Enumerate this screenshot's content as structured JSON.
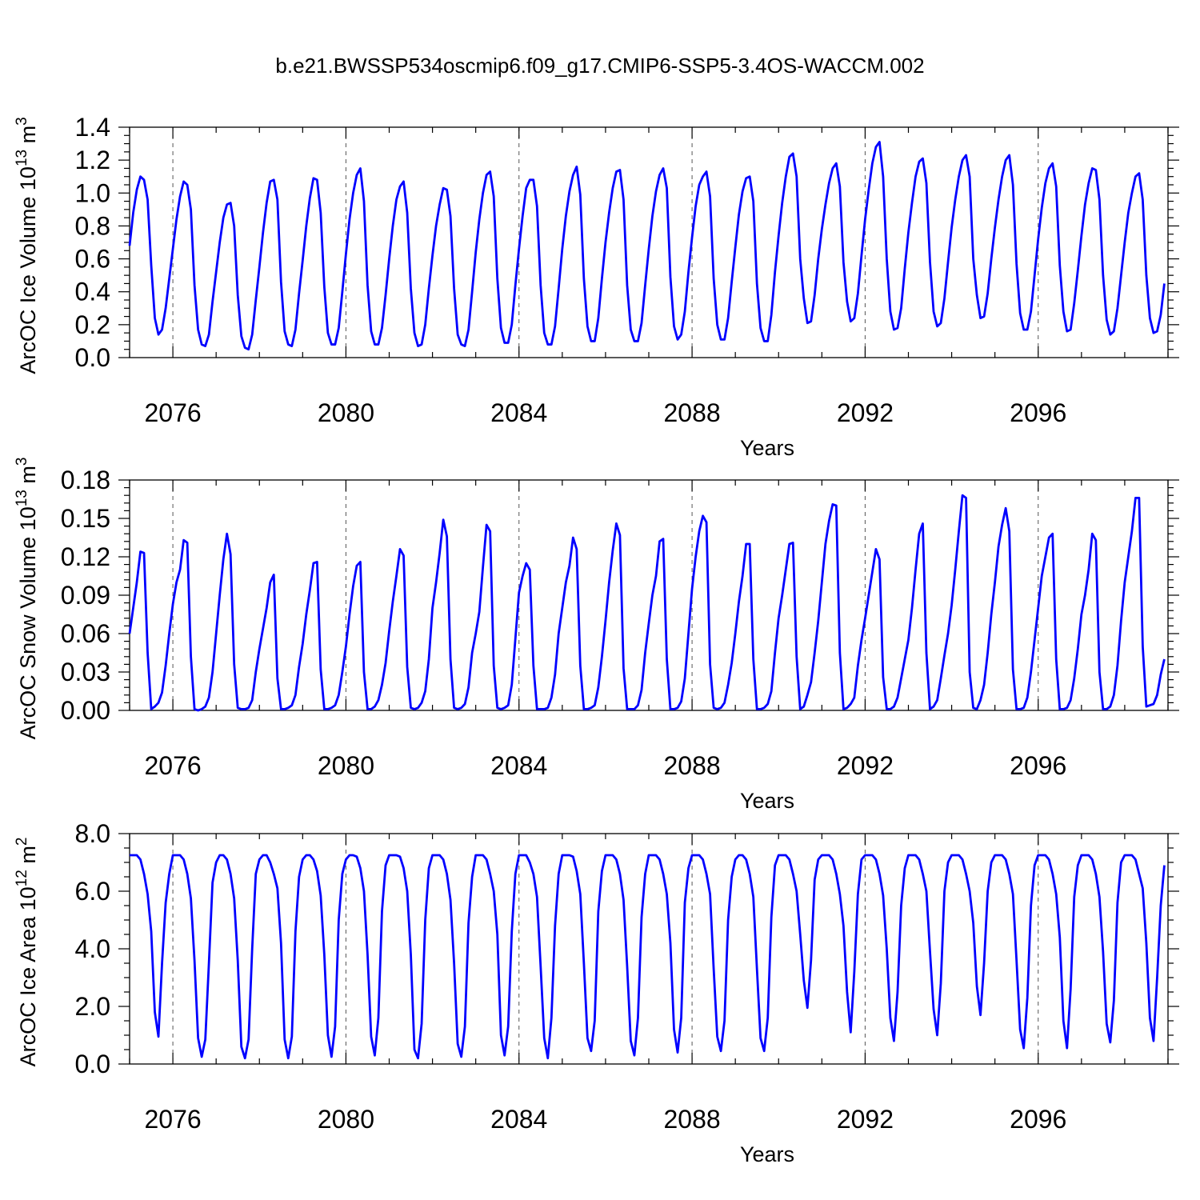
{
  "title": "b.e21.BWSSP534oscmip6.f09_g17.CMIP6-SSP5-3.4OS-WACCM.002",
  "line_color": "#0000ff",
  "chart_data": [
    {
      "type": "line",
      "ylabel": "ArcOC Ice Volume 10",
      "ylabel_exp": "13",
      "ylabel_unit": "m",
      "ylabel_unit_exp": "3",
      "xlabel": "Years",
      "xlim": [
        2075,
        2099
      ],
      "ylim": [
        0,
        1.4
      ],
      "ytick_labels": [
        "0.0",
        "0.2",
        "0.4",
        "0.6",
        "0.8",
        "1.0",
        "1.2",
        "1.4"
      ],
      "xtick_labels": [
        "2076",
        "2080",
        "2084",
        "2088",
        "2092",
        "2096"
      ],
      "grid": "dashed vertical at major x ticks",
      "series": [
        {
          "x_start": 2075.0,
          "x_step": 0.08333,
          "values": [
            0.68,
            0.88,
            1.02,
            1.1,
            1.08,
            0.96,
            0.56,
            0.24,
            0.14,
            0.17,
            0.3,
            0.48,
            0.66,
            0.84,
            0.98,
            1.07,
            1.05,
            0.9,
            0.44,
            0.17,
            0.08,
            0.07,
            0.14,
            0.34,
            0.52,
            0.7,
            0.85,
            0.93,
            0.94,
            0.8,
            0.38,
            0.13,
            0.06,
            0.05,
            0.14,
            0.35,
            0.55,
            0.76,
            0.94,
            1.07,
            1.08,
            0.96,
            0.46,
            0.16,
            0.08,
            0.07,
            0.17,
            0.39,
            0.59,
            0.8,
            0.97,
            1.09,
            1.08,
            0.88,
            0.43,
            0.15,
            0.08,
            0.08,
            0.18,
            0.4,
            0.63,
            0.84,
            1.0,
            1.11,
            1.15,
            0.95,
            0.44,
            0.16,
            0.08,
            0.08,
            0.18,
            0.38,
            0.6,
            0.8,
            0.96,
            1.04,
            1.07,
            0.88,
            0.42,
            0.15,
            0.07,
            0.08,
            0.2,
            0.42,
            0.62,
            0.8,
            0.93,
            1.03,
            1.02,
            0.86,
            0.42,
            0.14,
            0.08,
            0.07,
            0.17,
            0.4,
            0.64,
            0.84,
            1.0,
            1.11,
            1.13,
            0.98,
            0.48,
            0.18,
            0.09,
            0.09,
            0.2,
            0.44,
            0.66,
            0.86,
            1.03,
            1.08,
            1.08,
            0.92,
            0.44,
            0.15,
            0.08,
            0.08,
            0.19,
            0.42,
            0.66,
            0.86,
            1.01,
            1.11,
            1.16,
            0.99,
            0.48,
            0.19,
            0.1,
            0.1,
            0.24,
            0.48,
            0.7,
            0.88,
            1.03,
            1.13,
            1.14,
            0.96,
            0.44,
            0.17,
            0.1,
            0.1,
            0.21,
            0.44,
            0.66,
            0.86,
            1.01,
            1.11,
            1.15,
            1.03,
            0.49,
            0.19,
            0.11,
            0.14,
            0.28,
            0.52,
            0.73,
            0.92,
            1.05,
            1.1,
            1.13,
            0.98,
            0.48,
            0.2,
            0.11,
            0.11,
            0.24,
            0.46,
            0.67,
            0.87,
            1.01,
            1.09,
            1.1,
            0.95,
            0.45,
            0.18,
            0.1,
            0.1,
            0.26,
            0.52,
            0.74,
            0.94,
            1.1,
            1.22,
            1.24,
            1.1,
            0.6,
            0.36,
            0.21,
            0.22,
            0.38,
            0.6,
            0.78,
            0.93,
            1.06,
            1.15,
            1.18,
            1.04,
            0.58,
            0.34,
            0.22,
            0.24,
            0.39,
            0.62,
            0.84,
            1.02,
            1.18,
            1.28,
            1.31,
            1.1,
            0.6,
            0.28,
            0.17,
            0.18,
            0.3,
            0.54,
            0.76,
            0.94,
            1.1,
            1.19,
            1.21,
            1.06,
            0.58,
            0.28,
            0.19,
            0.21,
            0.36,
            0.58,
            0.79,
            0.96,
            1.1,
            1.2,
            1.23,
            1.1,
            0.6,
            0.38,
            0.24,
            0.25,
            0.39,
            0.6,
            0.79,
            0.96,
            1.1,
            1.2,
            1.23,
            1.05,
            0.57,
            0.27,
            0.17,
            0.17,
            0.28,
            0.5,
            0.72,
            0.91,
            1.06,
            1.15,
            1.18,
            1.04,
            0.56,
            0.28,
            0.16,
            0.17,
            0.33,
            0.53,
            0.74,
            0.93,
            1.06,
            1.15,
            1.14,
            0.96,
            0.5,
            0.23,
            0.14,
            0.16,
            0.3,
            0.5,
            0.7,
            0.88,
            1.0,
            1.1,
            1.12,
            0.96,
            0.5,
            0.24,
            0.15,
            0.16,
            0.26,
            0.45
          ]
        }
      ]
    },
    {
      "type": "line",
      "ylabel": "ArcOC Snow Volume 10",
      "ylabel_exp": "13",
      "ylabel_unit": "m",
      "ylabel_unit_exp": "3",
      "xlabel": "Years",
      "xlim": [
        2075,
        2099
      ],
      "ylim": [
        0,
        0.18
      ],
      "ytick_labels": [
        "0.00",
        "0.03",
        "0.06",
        "0.09",
        "0.12",
        "0.15",
        "0.18"
      ],
      "xtick_labels": [
        "2076",
        "2080",
        "2084",
        "2088",
        "2092",
        "2096"
      ],
      "grid": "dashed vertical at major x ticks",
      "series": [
        {
          "x_start": 2075.0,
          "x_step": 0.08333,
          "values": [
            0.06,
            0.08,
            0.1,
            0.124,
            0.123,
            0.045,
            0.001,
            0.003,
            0.006,
            0.014,
            0.035,
            0.06,
            0.083,
            0.1,
            0.11,
            0.133,
            0.131,
            0.042,
            0.001,
            0.0,
            0.001,
            0.003,
            0.01,
            0.03,
            0.06,
            0.09,
            0.118,
            0.138,
            0.122,
            0.036,
            0.002,
            0.001,
            0.001,
            0.002,
            0.008,
            0.03,
            0.048,
            0.064,
            0.08,
            0.1,
            0.106,
            0.025,
            0.001,
            0.001,
            0.002,
            0.004,
            0.012,
            0.034,
            0.052,
            0.075,
            0.094,
            0.115,
            0.116,
            0.032,
            0.001,
            0.001,
            0.002,
            0.004,
            0.012,
            0.03,
            0.05,
            0.075,
            0.097,
            0.113,
            0.116,
            0.03,
            0.001,
            0.001,
            0.003,
            0.008,
            0.02,
            0.037,
            0.062,
            0.085,
            0.105,
            0.126,
            0.121,
            0.034,
            0.002,
            0.001,
            0.002,
            0.006,
            0.015,
            0.04,
            0.08,
            0.1,
            0.123,
            0.149,
            0.136,
            0.04,
            0.002,
            0.001,
            0.002,
            0.005,
            0.018,
            0.045,
            0.06,
            0.077,
            0.112,
            0.145,
            0.14,
            0.035,
            0.002,
            0.001,
            0.002,
            0.004,
            0.02,
            0.056,
            0.092,
            0.105,
            0.115,
            0.11,
            0.035,
            0.001,
            0.001,
            0.001,
            0.002,
            0.01,
            0.028,
            0.06,
            0.08,
            0.1,
            0.113,
            0.135,
            0.126,
            0.035,
            0.001,
            0.001,
            0.002,
            0.004,
            0.018,
            0.042,
            0.07,
            0.1,
            0.125,
            0.146,
            0.137,
            0.033,
            0.001,
            0.001,
            0.001,
            0.004,
            0.016,
            0.045,
            0.068,
            0.09,
            0.105,
            0.132,
            0.134,
            0.04,
            0.001,
            0.001,
            0.002,
            0.007,
            0.025,
            0.06,
            0.095,
            0.12,
            0.14,
            0.152,
            0.147,
            0.036,
            0.002,
            0.001,
            0.002,
            0.006,
            0.02,
            0.037,
            0.06,
            0.085,
            0.105,
            0.13,
            0.13,
            0.04,
            0.001,
            0.001,
            0.002,
            0.005,
            0.015,
            0.045,
            0.072,
            0.09,
            0.11,
            0.13,
            0.131,
            0.042,
            0.001,
            0.003,
            0.012,
            0.022,
            0.045,
            0.07,
            0.1,
            0.13,
            0.148,
            0.161,
            0.16,
            0.045,
            0.001,
            0.002,
            0.005,
            0.01,
            0.035,
            0.055,
            0.072,
            0.09,
            0.108,
            0.126,
            0.118,
            0.026,
            0.001,
            0.001,
            0.003,
            0.01,
            0.025,
            0.04,
            0.055,
            0.08,
            0.11,
            0.138,
            0.146,
            0.045,
            0.001,
            0.003,
            0.008,
            0.025,
            0.043,
            0.06,
            0.082,
            0.11,
            0.14,
            0.168,
            0.166,
            0.03,
            0.002,
            0.001,
            0.008,
            0.02,
            0.045,
            0.075,
            0.1,
            0.128,
            0.145,
            0.158,
            0.14,
            0.032,
            0.001,
            0.001,
            0.002,
            0.01,
            0.03,
            0.055,
            0.08,
            0.105,
            0.12,
            0.135,
            0.138,
            0.04,
            0.001,
            0.001,
            0.002,
            0.008,
            0.025,
            0.048,
            0.075,
            0.09,
            0.11,
            0.138,
            0.133,
            0.03,
            0.001,
            0.001,
            0.003,
            0.012,
            0.035,
            0.07,
            0.1,
            0.12,
            0.14,
            0.166,
            0.166,
            0.05,
            0.003,
            0.004,
            0.005,
            0.012,
            0.028,
            0.04
          ]
        }
      ]
    },
    {
      "type": "line",
      "ylabel": "ArcOC Ice Area 10",
      "ylabel_exp": "12",
      "ylabel_unit": "m",
      "ylabel_unit_exp": "2",
      "xlabel": "Years",
      "xlim": [
        2075,
        2099
      ],
      "ylim": [
        0,
        8
      ],
      "ytick_labels": [
        "0.0",
        "2.0",
        "4.0",
        "6.0",
        "8.0"
      ],
      "xtick_labels": [
        "2076",
        "2080",
        "2084",
        "2088",
        "2092",
        "2096"
      ],
      "grid": "dashed vertical at major x ticks",
      "series": [
        {
          "x_start": 2075.0,
          "x_step": 0.08333,
          "values": [
            7.25,
            7.25,
            7.25,
            7.1,
            6.6,
            5.9,
            4.6,
            1.8,
            0.95,
            3.5,
            5.6,
            6.6,
            7.25,
            7.25,
            7.25,
            7.1,
            6.6,
            5.75,
            3.6,
            0.9,
            0.25,
            0.85,
            3.5,
            6.3,
            7.0,
            7.25,
            7.25,
            7.1,
            6.6,
            5.75,
            3.6,
            0.6,
            0.2,
            0.85,
            4.0,
            6.6,
            7.1,
            7.25,
            7.25,
            7.0,
            6.6,
            6.1,
            4.2,
            0.85,
            0.2,
            0.95,
            4.6,
            6.5,
            7.1,
            7.25,
            7.25,
            7.1,
            6.7,
            5.85,
            3.8,
            1.0,
            0.25,
            1.3,
            5.0,
            6.6,
            7.1,
            7.25,
            7.25,
            7.2,
            6.8,
            6.0,
            3.8,
            0.95,
            0.3,
            1.6,
            5.3,
            6.9,
            7.25,
            7.25,
            7.25,
            7.2,
            6.8,
            6.0,
            3.8,
            0.5,
            0.2,
            1.4,
            5.0,
            6.8,
            7.25,
            7.25,
            7.25,
            7.1,
            6.6,
            5.7,
            3.5,
            0.7,
            0.25,
            1.3,
            4.9,
            6.5,
            7.25,
            7.25,
            7.25,
            7.1,
            6.6,
            6.0,
            4.5,
            1.0,
            0.3,
            1.3,
            4.6,
            6.6,
            7.25,
            7.25,
            7.25,
            7.0,
            6.6,
            5.8,
            3.4,
            0.9,
            0.2,
            1.6,
            4.8,
            6.6,
            7.25,
            7.25,
            7.25,
            7.2,
            6.7,
            5.9,
            3.5,
            0.9,
            0.45,
            1.5,
            5.3,
            6.7,
            7.25,
            7.25,
            7.25,
            7.1,
            6.6,
            5.7,
            3.4,
            0.8,
            0.3,
            1.6,
            5.1,
            6.6,
            7.25,
            7.25,
            7.25,
            7.1,
            6.6,
            5.9,
            4.2,
            1.2,
            0.4,
            1.6,
            5.6,
            6.8,
            7.25,
            7.25,
            7.25,
            7.1,
            6.6,
            5.9,
            3.3,
            0.95,
            0.45,
            1.5,
            5.0,
            6.5,
            7.1,
            7.25,
            7.25,
            7.1,
            6.6,
            5.8,
            3.3,
            0.9,
            0.45,
            1.6,
            5.1,
            6.9,
            7.25,
            7.25,
            7.25,
            7.1,
            6.6,
            6.0,
            4.5,
            2.9,
            1.95,
            3.6,
            6.4,
            7.1,
            7.25,
            7.25,
            7.25,
            7.1,
            6.6,
            5.9,
            4.8,
            2.5,
            1.1,
            3.2,
            5.9,
            7.1,
            7.25,
            7.25,
            7.25,
            7.1,
            6.6,
            5.85,
            4.0,
            1.6,
            0.8,
            2.5,
            5.5,
            6.8,
            7.25,
            7.25,
            7.25,
            7.1,
            6.6,
            6.0,
            3.9,
            1.9,
            1.0,
            2.8,
            6.0,
            7.0,
            7.25,
            7.25,
            7.25,
            7.1,
            6.6,
            6.0,
            4.9,
            2.7,
            1.7,
            3.5,
            6.0,
            7.0,
            7.25,
            7.25,
            7.25,
            7.1,
            6.6,
            5.9,
            3.6,
            1.2,
            0.55,
            2.3,
            5.5,
            6.9,
            7.25,
            7.25,
            7.25,
            7.1,
            6.6,
            5.9,
            4.4,
            1.5,
            0.55,
            2.6,
            5.8,
            6.9,
            7.25,
            7.25,
            7.25,
            7.1,
            6.6,
            5.8,
            3.9,
            1.4,
            0.75,
            2.2,
            5.6,
            7.0,
            7.25,
            7.25,
            7.25,
            7.1,
            6.6,
            6.1,
            4.2,
            1.6,
            0.8,
            3.0,
            5.5,
            6.9
          ]
        }
      ]
    }
  ]
}
